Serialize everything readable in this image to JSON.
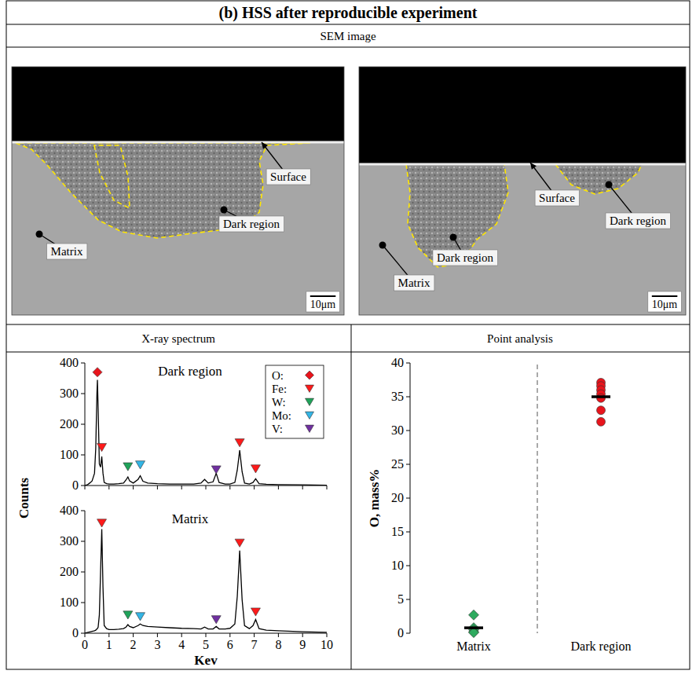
{
  "header": {
    "title": "(b) HSS after reproducible experiment",
    "image_row": "SEM image"
  },
  "sem_images": [
    {
      "labels": [
        "Surface",
        "Dark region",
        "Matrix"
      ],
      "scale_bar": "10μm"
    },
    {
      "labels": [
        "Surface",
        "Dark region",
        "Dark region",
        "Matrix"
      ],
      "scale_bar": "10μm"
    }
  ],
  "section_heads": [
    "X-ray spectrum",
    "Point analysis"
  ],
  "chart_data": [
    {
      "type": "line",
      "title": "Dark region",
      "y_label": "Counts",
      "x": [
        0,
        0.1,
        0.2,
        0.3,
        0.4,
        0.45,
        0.5,
        0.52,
        0.55,
        0.6,
        0.65,
        0.7,
        0.75,
        0.8,
        0.9,
        1.0,
        1.2,
        1.4,
        1.6,
        1.7,
        1.78,
        1.85,
        2.0,
        2.2,
        2.29,
        2.4,
        2.6,
        3.0,
        3.5,
        4.0,
        4.5,
        4.8,
        4.95,
        5.1,
        5.3,
        5.43,
        5.55,
        5.8,
        6.0,
        6.2,
        6.3,
        6.4,
        6.5,
        6.6,
        6.8,
        6.95,
        7.06,
        7.2,
        7.5,
        8,
        9,
        10
      ],
      "xlim": [
        0,
        10
      ],
      "xticks": [
        0,
        1,
        2,
        3,
        4,
        5,
        6,
        7,
        8,
        9,
        10
      ],
      "ylim": [
        0,
        400
      ],
      "yticks": [
        0,
        100,
        200,
        300,
        400
      ],
      "tick_labels": "y",
      "legend": "top-right",
      "series": [
        {
          "type": "line",
          "color": "#000000",
          "line_style": "solid",
          "values": [
            0,
            2,
            8,
            15,
            40,
            120,
            300,
            345,
            250,
            70,
            60,
            95,
            40,
            10,
            6,
            5,
            5,
            6,
            8,
            18,
            28,
            15,
            8,
            20,
            32,
            14,
            8,
            6,
            5,
            5,
            5,
            8,
            20,
            8,
            12,
            40,
            10,
            5,
            5,
            10,
            50,
            115,
            45,
            8,
            5,
            10,
            22,
            6,
            4,
            3,
            2,
            1
          ]
        },
        {
          "name": "O:",
          "type": "scatter",
          "marker": "diamond",
          "color": "#e8141c",
          "x": [
            0.52
          ],
          "values": [
            370
          ]
        },
        {
          "name": "Fe:",
          "type": "scatter",
          "marker": "triangle-down",
          "color": "#ff1a1a",
          "x": [
            0.7,
            6.4,
            7.06
          ],
          "values": [
            125,
            140,
            55
          ]
        },
        {
          "name": "W:",
          "type": "scatter",
          "marker": "triangle-down",
          "color": "#1fa35a",
          "x": [
            1.78
          ],
          "values": [
            62
          ]
        },
        {
          "name": "Mo:",
          "type": "scatter",
          "marker": "triangle-down",
          "color": "#33b5e5",
          "x": [
            2.29
          ],
          "values": [
            68
          ]
        },
        {
          "name": "V:",
          "type": "scatter",
          "marker": "triangle-down",
          "color": "#7030a0",
          "x": [
            5.43
          ],
          "values": [
            52
          ]
        }
      ]
    },
    {
      "type": "line",
      "title": "Matrix",
      "x_label": "Kev",
      "x": [
        0,
        0.1,
        0.2,
        0.3,
        0.4,
        0.45,
        0.5,
        0.52,
        0.55,
        0.6,
        0.65,
        0.7,
        0.75,
        0.8,
        0.9,
        1.0,
        1.2,
        1.4,
        1.6,
        1.7,
        1.78,
        1.85,
        2.0,
        2.2,
        2.29,
        2.4,
        2.6,
        3.0,
        3.5,
        4.0,
        4.5,
        4.8,
        4.95,
        5.1,
        5.3,
        5.43,
        5.55,
        5.8,
        6.0,
        6.2,
        6.3,
        6.4,
        6.5,
        6.6,
        6.8,
        6.95,
        7.06,
        7.2,
        7.5,
        8,
        9,
        10
      ],
      "xlim": [
        0,
        10
      ],
      "xticks": [
        0,
        1,
        2,
        3,
        4,
        5,
        6,
        7,
        8,
        9,
        10
      ],
      "ylim": [
        0,
        400
      ],
      "yticks": [
        0,
        100,
        200,
        300,
        400
      ],
      "series": [
        {
          "type": "line",
          "color": "#000000",
          "line_style": "solid",
          "values": [
            0,
            2,
            4,
            6,
            8,
            10,
            14,
            15,
            20,
            60,
            200,
            340,
            150,
            25,
            15,
            12,
            12,
            13,
            15,
            20,
            28,
            22,
            18,
            25,
            30,
            25,
            22,
            20,
            18,
            16,
            15,
            14,
            20,
            14,
            14,
            22,
            14,
            14,
            16,
            30,
            120,
            270,
            110,
            25,
            15,
            25,
            45,
            15,
            10,
            8,
            5,
            3
          ]
        },
        {
          "type": "scatter",
          "marker": "triangle-down",
          "color": "#ff1a1a",
          "x": [
            0.7,
            6.4,
            7.06
          ],
          "values": [
            360,
            295,
            70
          ]
        },
        {
          "type": "scatter",
          "marker": "triangle-down",
          "color": "#1fa35a",
          "x": [
            1.78
          ],
          "values": [
            60
          ]
        },
        {
          "type": "scatter",
          "marker": "triangle-down",
          "color": "#33b5e5",
          "x": [
            2.29
          ],
          "values": [
            55
          ]
        },
        {
          "type": "scatter",
          "marker": "triangle-down",
          "color": "#7030a0",
          "x": [
            5.43
          ],
          "values": [
            45
          ]
        }
      ]
    },
    {
      "type": "scatter",
      "y_label": "O, mass%",
      "ylim": [
        0,
        40
      ],
      "yticks": [
        0,
        5,
        10,
        15,
        20,
        25,
        30,
        35,
        40
      ],
      "groups": [
        {
          "category": "Matrix",
          "color": "#2eaa5f",
          "marker": "diamond",
          "values": [
            2.7,
            0.8,
            0.5,
            0.2,
            0.1
          ],
          "mean": 0.8
        },
        {
          "category": "Dark region",
          "color": "#e8141c",
          "marker": "circle",
          "values": [
            37.1,
            36.6,
            36.0,
            35.4,
            34.8,
            33.0,
            31.3
          ],
          "mean": 35.0
        }
      ]
    }
  ]
}
